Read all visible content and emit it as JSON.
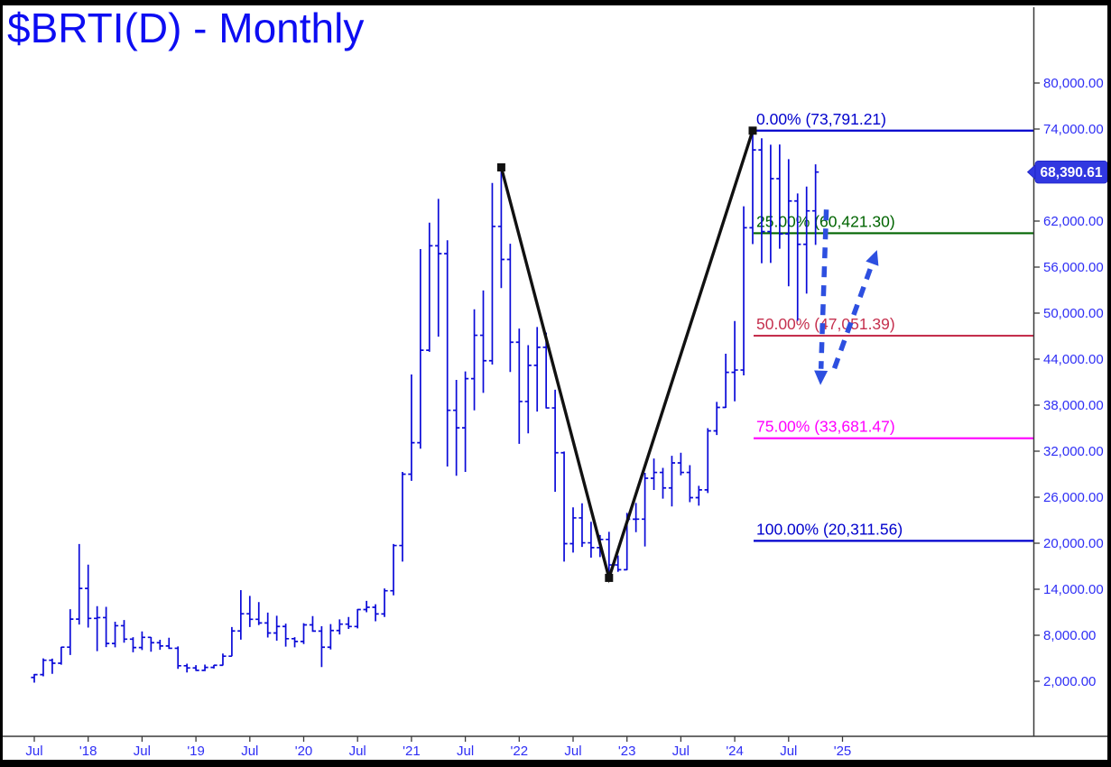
{
  "chart_data": {
    "type": "ohlc-bar",
    "symbol": "$BRTI(D)",
    "timeframe": "Monthly",
    "title": "$BRTI(D) - Monthly",
    "last_price": 68390.61,
    "last_price_label": "68,390.61",
    "start_month": "2017-07",
    "x_axis": {
      "tick_labels": [
        "Jul",
        "'18",
        "Jul",
        "'19",
        "Jul",
        "'20",
        "Jul",
        "'21",
        "Jul",
        "'22",
        "Jul",
        "'23",
        "Jul",
        "'24",
        "Jul",
        "'25"
      ],
      "tick_month_index": [
        0,
        6,
        12,
        18,
        24,
        30,
        36,
        42,
        48,
        54,
        60,
        66,
        72,
        78,
        84,
        90
      ]
    },
    "y_axis": {
      "min": 2000,
      "max": 80000,
      "tick_values": [
        80000,
        74000,
        62000,
        56000,
        50000,
        44000,
        38000,
        32000,
        26000,
        20000,
        14000,
        8000,
        2000
      ],
      "tick_labels": [
        "80,000.00",
        "74,000.00",
        "62,000.00",
        "56,000.00",
        "50,000.00",
        "44,000.00",
        "38,000.00",
        "32,000.00",
        "26,000.00",
        "20,000.00",
        "14,000.00",
        "8,000.00",
        "2,000.00"
      ]
    },
    "bars_ohlc": [
      [
        2500,
        2950,
        1830,
        2870
      ],
      [
        2870,
        4980,
        2650,
        4740
      ],
      [
        4740,
        4950,
        2970,
        4350
      ],
      [
        4350,
        6480,
        4160,
        6450
      ],
      [
        6450,
        11400,
        5420,
        10100
      ],
      [
        10100,
        19900,
        9400,
        14100
      ],
      [
        14100,
        17200,
        9000,
        10200
      ],
      [
        10200,
        11800,
        5920,
        10300
      ],
      [
        10300,
        11700,
        6450,
        6930
      ],
      [
        6930,
        9760,
        6420,
        9240
      ],
      [
        9240,
        9990,
        7030,
        7490
      ],
      [
        7490,
        7750,
        5780,
        6400
      ],
      [
        6400,
        8500,
        6070,
        7730
      ],
      [
        7730,
        7770,
        5860,
        7030
      ],
      [
        7030,
        7410,
        6100,
        6600
      ],
      [
        6600,
        7680,
        6200,
        6300
      ],
      [
        6300,
        6540,
        3620,
        4020
      ],
      [
        4020,
        4300,
        3150,
        3740
      ],
      [
        3740,
        4100,
        3350,
        3430
      ],
      [
        3430,
        4180,
        3330,
        3810
      ],
      [
        3810,
        4130,
        3660,
        4090
      ],
      [
        4090,
        5620,
        4060,
        5270
      ],
      [
        5270,
        9070,
        5270,
        8560
      ],
      [
        8560,
        13880,
        7430,
        10800
      ],
      [
        10800,
        13130,
        9080,
        10080
      ],
      [
        10080,
        12320,
        9320,
        9600
      ],
      [
        9600,
        10950,
        7700,
        8290
      ],
      [
        8290,
        10540,
        7290,
        9150
      ],
      [
        9150,
        9510,
        6520,
        7550
      ],
      [
        7550,
        7750,
        6430,
        7190
      ],
      [
        7190,
        9570,
        6850,
        9350
      ],
      [
        9350,
        10500,
        8440,
        8540
      ],
      [
        8540,
        9170,
        3860,
        6440
      ],
      [
        6440,
        9460,
        6140,
        8620
      ],
      [
        8620,
        10070,
        8110,
        9450
      ],
      [
        9450,
        10380,
        8830,
        9140
      ],
      [
        9140,
        11420,
        8900,
        11350
      ],
      [
        11350,
        12480,
        11000,
        11650
      ],
      [
        11650,
        12050,
        9830,
        10780
      ],
      [
        10780,
        14100,
        10380,
        13800
      ],
      [
        13800,
        19900,
        13200,
        19700
      ],
      [
        19700,
        29300,
        17600,
        29000
      ],
      [
        29000,
        42000,
        28130,
        33100
      ],
      [
        33100,
        58350,
        32320,
        45160
      ],
      [
        45160,
        61800,
        44950,
        58780
      ],
      [
        58780,
        64900,
        46930,
        57750
      ],
      [
        57750,
        59500,
        30000,
        37330
      ],
      [
        37330,
        41300,
        28800,
        35040
      ],
      [
        35040,
        42400,
        29300,
        41460
      ],
      [
        41460,
        50500,
        37330,
        47110
      ],
      [
        47110,
        52950,
        39600,
        43790
      ],
      [
        43790,
        66970,
        43290,
        61300
      ],
      [
        61300,
        69000,
        53260,
        57000
      ],
      [
        57000,
        59040,
        42330,
        46210
      ],
      [
        46210,
        47990,
        32950,
        38480
      ],
      [
        38480,
        45820,
        34320,
        43190
      ],
      [
        43190,
        48190,
        37160,
        45540
      ],
      [
        45540,
        47450,
        37580,
        37640
      ],
      [
        37640,
        40020,
        26700,
        31790
      ],
      [
        31790,
        31960,
        17600,
        19940
      ],
      [
        19940,
        24670,
        18780,
        23300
      ],
      [
        23300,
        25200,
        19520,
        20050
      ],
      [
        20050,
        22800,
        18120,
        19430
      ],
      [
        19430,
        21080,
        18190,
        20490
      ],
      [
        20490,
        21480,
        15480,
        17170
      ],
      [
        17170,
        18390,
        16260,
        16540
      ],
      [
        16540,
        23960,
        16490,
        23130
      ],
      [
        23130,
        25250,
        21440,
        23140
      ],
      [
        23140,
        29180,
        19570,
        28470
      ],
      [
        28470,
        31050,
        26940,
        29230
      ],
      [
        29230,
        29820,
        25810,
        27210
      ],
      [
        27210,
        31400,
        24800,
        30470
      ],
      [
        30470,
        31800,
        28860,
        29230
      ],
      [
        29230,
        30180,
        25350,
        25940
      ],
      [
        25940,
        27480,
        24900,
        26960
      ],
      [
        26960,
        35000,
        26540,
        34650
      ],
      [
        34650,
        38420,
        34100,
        37710
      ],
      [
        37710,
        44700,
        37640,
        42280
      ],
      [
        42280,
        48970,
        38500,
        42580
      ],
      [
        42580,
        63930,
        41880,
        61130
      ],
      [
        61130,
        73791,
        59000,
        71280
      ],
      [
        71280,
        72790,
        56500,
        60640
      ],
      [
        60640,
        71950,
        56550,
        67530
      ],
      [
        67530,
        71980,
        58400,
        60320
      ],
      [
        60320,
        70080,
        53500,
        64620
      ],
      [
        64620,
        65600,
        49000,
        58970
      ],
      [
        58970,
        66500,
        52550,
        63330
      ],
      [
        63330,
        69400,
        58900,
        68391
      ]
    ],
    "fib_levels": [
      {
        "label": "0.00% (73,791.21)",
        "pct": 0,
        "value": 73791.21,
        "color": "#0000cd"
      },
      {
        "label": "25.00% (60,421.30)",
        "pct": 25,
        "value": 60421.3,
        "color": "#006400"
      },
      {
        "label": "50.00% (47,051.39)",
        "pct": 50,
        "value": 47051.39,
        "color": "#c5304e"
      },
      {
        "label": "75.00% (33,681.47)",
        "pct": 75,
        "value": 33681.47,
        "color": "#ff00ff"
      },
      {
        "label": "100.00% (20,311.56)",
        "pct": 100,
        "value": 20311.56,
        "color": "#0000cd"
      }
    ],
    "impulse_line": {
      "points": [
        {
          "month_index": 52,
          "value": 69000
        },
        {
          "month_index": 64,
          "value": 15480
        },
        {
          "month_index": 80,
          "value": 73791.21
        }
      ]
    },
    "forecast_arrows": [
      {
        "direction": "down",
        "from_month": 88.2,
        "from_value": 63500,
        "to_month": 87.6,
        "to_value": 42500
      },
      {
        "direction": "up",
        "from_month": 89.1,
        "from_value": 42800,
        "to_month": 93.3,
        "to_value": 56450
      }
    ],
    "colors": {
      "title": "#0d0df2",
      "bars": "#0a0ad8",
      "axis_line": "#3a3a3a",
      "axis_text": "#2e2ef5",
      "impulse": "#111111",
      "arrow": "#2d4fe0",
      "tag_bg": "#3138e0",
      "tag_border": "#1f23c4",
      "tag_text": "#ffffff"
    }
  }
}
